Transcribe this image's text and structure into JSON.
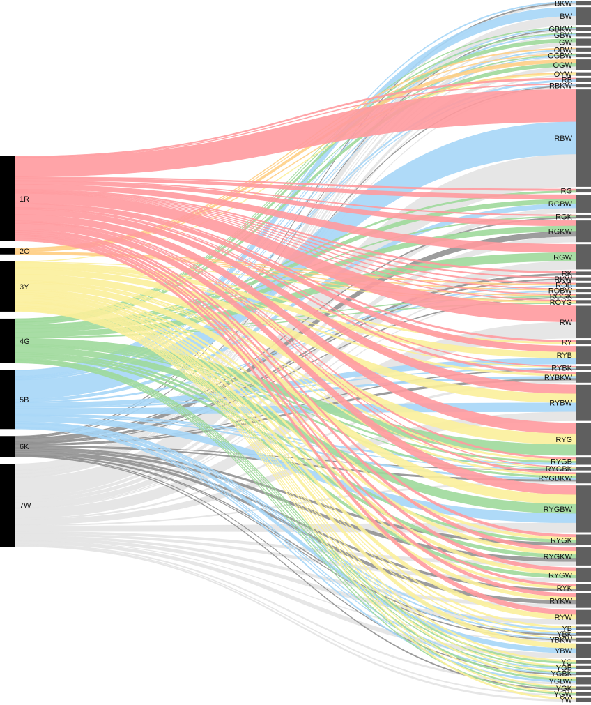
{
  "chart_data": {
    "type": "sankey",
    "title": "",
    "source_nodes": [
      {
        "label": "1R",
        "color": "#ff9a9e",
        "weight": 62
      },
      {
        "label": "2O",
        "color": "#ffcf86",
        "weight": 4
      },
      {
        "label": "3Y",
        "color": "#fbef9b",
        "weight": 38
      },
      {
        "label": "4G",
        "color": "#9ed99b",
        "weight": 32
      },
      {
        "label": "5B",
        "color": "#a6d6f7",
        "weight": 43
      },
      {
        "label": "6K",
        "color": "#8c8c8c",
        "weight": 16
      },
      {
        "label": "7W",
        "color": "#e3e3e3",
        "weight": 60
      }
    ],
    "target_nodes": [
      {
        "label": "BKW",
        "weight": 1,
        "sources": [
          "6K",
          "5B",
          "7W"
        ]
      },
      {
        "label": "BW",
        "weight": 5,
        "sources": [
          "5B",
          "7W"
        ]
      },
      {
        "label": "GBKW",
        "weight": 1,
        "sources": [
          "4G",
          "5B",
          "6K",
          "7W"
        ]
      },
      {
        "label": "GBW",
        "weight": 1,
        "sources": [
          "4G",
          "5B",
          "7W"
        ]
      },
      {
        "label": "GW",
        "weight": 2,
        "sources": [
          "4G",
          "7W"
        ]
      },
      {
        "label": "OBW",
        "weight": 1,
        "sources": [
          "2O",
          "5B",
          "7W"
        ]
      },
      {
        "label": "OGBW",
        "weight": 1,
        "sources": [
          "2O",
          "4G",
          "5B",
          "7W"
        ]
      },
      {
        "label": "OGW",
        "weight": 3,
        "sources": [
          "2O",
          "4G",
          "7W"
        ]
      },
      {
        "label": "OYW",
        "weight": 1,
        "sources": [
          "2O",
          "3Y",
          "7W"
        ]
      },
      {
        "label": "RB",
        "weight": 1,
        "sources": [
          "1R",
          "5B"
        ]
      },
      {
        "label": "RBKW",
        "weight": 1,
        "sources": [
          "1R",
          "5B",
          "6K",
          "7W"
        ]
      },
      {
        "label": "RBW",
        "weight": 27,
        "sources": [
          "1R",
          "5B",
          "7W"
        ]
      },
      {
        "label": "RG",
        "weight": 1,
        "sources": [
          "1R",
          "4G"
        ]
      },
      {
        "label": "RGBW",
        "weight": 5,
        "sources": [
          "1R",
          "4G",
          "5B",
          "7W"
        ]
      },
      {
        "label": "RGK",
        "weight": 1,
        "sources": [
          "1R",
          "4G",
          "6K"
        ]
      },
      {
        "label": "RGKW",
        "weight": 6,
        "sources": [
          "1R",
          "4G",
          "6K",
          "7W"
        ]
      },
      {
        "label": "RGW",
        "weight": 7,
        "sources": [
          "1R",
          "4G",
          "7W"
        ]
      },
      {
        "label": "RK",
        "weight": 1,
        "sources": [
          "1R",
          "6K"
        ]
      },
      {
        "label": "RKW",
        "weight": 1,
        "sources": [
          "1R",
          "6K",
          "7W"
        ]
      },
      {
        "label": "ROB",
        "weight": 1,
        "sources": [
          "1R",
          "2O",
          "5B"
        ]
      },
      {
        "label": "ROBW",
        "weight": 1,
        "sources": [
          "1R",
          "2O",
          "5B",
          "7W"
        ]
      },
      {
        "label": "ROGK",
        "weight": 1,
        "sources": [
          "1R",
          "2O",
          "4G",
          "6K"
        ]
      },
      {
        "label": "ROYG",
        "weight": 1,
        "sources": [
          "1R",
          "2O",
          "3Y",
          "4G"
        ]
      },
      {
        "label": "RW",
        "weight": 9,
        "sources": [
          "1R",
          "7W"
        ]
      },
      {
        "label": "RY",
        "weight": 1,
        "sources": [
          "1R",
          "3Y"
        ]
      },
      {
        "label": "RYB",
        "weight": 5,
        "sources": [
          "1R",
          "3Y",
          "5B"
        ]
      },
      {
        "label": "RYBK",
        "weight": 1,
        "sources": [
          "1R",
          "3Y",
          "5B",
          "6K"
        ]
      },
      {
        "label": "RYBKW",
        "weight": 3,
        "sources": [
          "1R",
          "3Y",
          "5B",
          "6K",
          "7W"
        ]
      },
      {
        "label": "RYBW",
        "weight": 10,
        "sources": [
          "1R",
          "3Y",
          "5B",
          "7W"
        ]
      },
      {
        "label": "RYG",
        "weight": 9,
        "sources": [
          "1R",
          "3Y",
          "4G"
        ]
      },
      {
        "label": "RYGB",
        "weight": 2,
        "sources": [
          "1R",
          "3Y",
          "4G",
          "5B"
        ]
      },
      {
        "label": "RYGBK",
        "weight": 1,
        "sources": [
          "1R",
          "3Y",
          "4G",
          "5B",
          "6K"
        ]
      },
      {
        "label": "RYGBKW",
        "weight": 3,
        "sources": [
          "1R",
          "3Y",
          "4G",
          "5B",
          "6K",
          "7W"
        ]
      },
      {
        "label": "RYGBW",
        "weight": 13,
        "sources": [
          "1R",
          "3Y",
          "4G",
          "5B",
          "7W"
        ]
      },
      {
        "label": "RYGK",
        "weight": 3,
        "sources": [
          "1R",
          "3Y",
          "4G",
          "6K"
        ]
      },
      {
        "label": "RYGKW",
        "weight": 5,
        "sources": [
          "1R",
          "3Y",
          "4G",
          "6K",
          "7W"
        ]
      },
      {
        "label": "RYGW",
        "weight": 4,
        "sources": [
          "1R",
          "3Y",
          "4G",
          "7W"
        ]
      },
      {
        "label": "RYK",
        "weight": 2,
        "sources": [
          "1R",
          "3Y",
          "6K"
        ]
      },
      {
        "label": "RYKW",
        "weight": 4,
        "sources": [
          "1R",
          "3Y",
          "6K",
          "7W"
        ]
      },
      {
        "label": "RYW",
        "weight": 4,
        "sources": [
          "1R",
          "3Y",
          "7W"
        ]
      },
      {
        "label": "YB",
        "weight": 1,
        "sources": [
          "3Y",
          "5B"
        ]
      },
      {
        "label": "YBK",
        "weight": 1,
        "sources": [
          "3Y",
          "5B",
          "6K"
        ]
      },
      {
        "label": "YBKW",
        "weight": 1,
        "sources": [
          "3Y",
          "5B",
          "6K",
          "7W"
        ]
      },
      {
        "label": "YBW",
        "weight": 4,
        "sources": [
          "3Y",
          "5B",
          "7W"
        ]
      },
      {
        "label": "YG",
        "weight": 1,
        "sources": [
          "3Y",
          "4G"
        ]
      },
      {
        "label": "YGB",
        "weight": 1,
        "sources": [
          "3Y",
          "4G",
          "5B"
        ]
      },
      {
        "label": "YGBK",
        "weight": 1,
        "sources": [
          "3Y",
          "4G",
          "5B",
          "6K"
        ]
      },
      {
        "label": "YGBW",
        "weight": 2,
        "sources": [
          "3Y",
          "4G",
          "5B",
          "7W"
        ]
      },
      {
        "label": "YGK",
        "weight": 1,
        "sources": [
          "3Y",
          "4G",
          "6K"
        ]
      },
      {
        "label": "YGW",
        "weight": 1,
        "sources": [
          "3Y",
          "4G",
          "7W"
        ]
      },
      {
        "label": "YW",
        "weight": 1,
        "sources": [
          "3Y",
          "7W"
        ]
      }
    ],
    "colors": {
      "source_bar": "#000000",
      "target_bar": "#5f5f5f",
      "label_text": "#111111",
      "background": "#ffffff"
    }
  }
}
